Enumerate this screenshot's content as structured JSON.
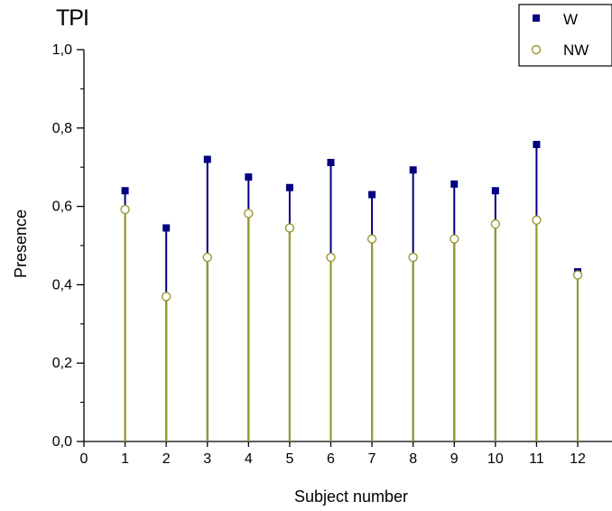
{
  "chart_data": {
    "type": "scatter",
    "title": "TPI",
    "xlabel": "Subject number",
    "ylabel": "Presence",
    "xlim": [
      0,
      12
    ],
    "ylim": [
      0,
      1.0
    ],
    "x_ticks": [
      "0",
      "1",
      "2",
      "3",
      "4",
      "5",
      "6",
      "7",
      "8",
      "9",
      "10",
      "11",
      "12"
    ],
    "y_ticks": [
      "0,0",
      "0,2",
      "0,4",
      "0,6",
      "0,8",
      "1,0"
    ],
    "x": [
      1,
      2,
      3,
      4,
      5,
      6,
      7,
      8,
      9,
      10,
      11,
      12
    ],
    "series": [
      {
        "name": "W",
        "marker": "filled-square",
        "color": "#000080",
        "stem_color": "#000080",
        "values": [
          0.64,
          0.545,
          0.72,
          0.675,
          0.648,
          0.712,
          0.63,
          0.693,
          0.657,
          0.64,
          0.758,
          0.433
        ]
      },
      {
        "name": "NW",
        "marker": "open-circle",
        "color": "#999933",
        "stem_color": "#999933",
        "values": [
          0.592,
          0.37,
          0.47,
          0.582,
          0.545,
          0.47,
          0.517,
          0.47,
          0.517,
          0.555,
          0.565,
          0.425
        ]
      }
    ],
    "legend_position": "top-right",
    "grid": false
  }
}
